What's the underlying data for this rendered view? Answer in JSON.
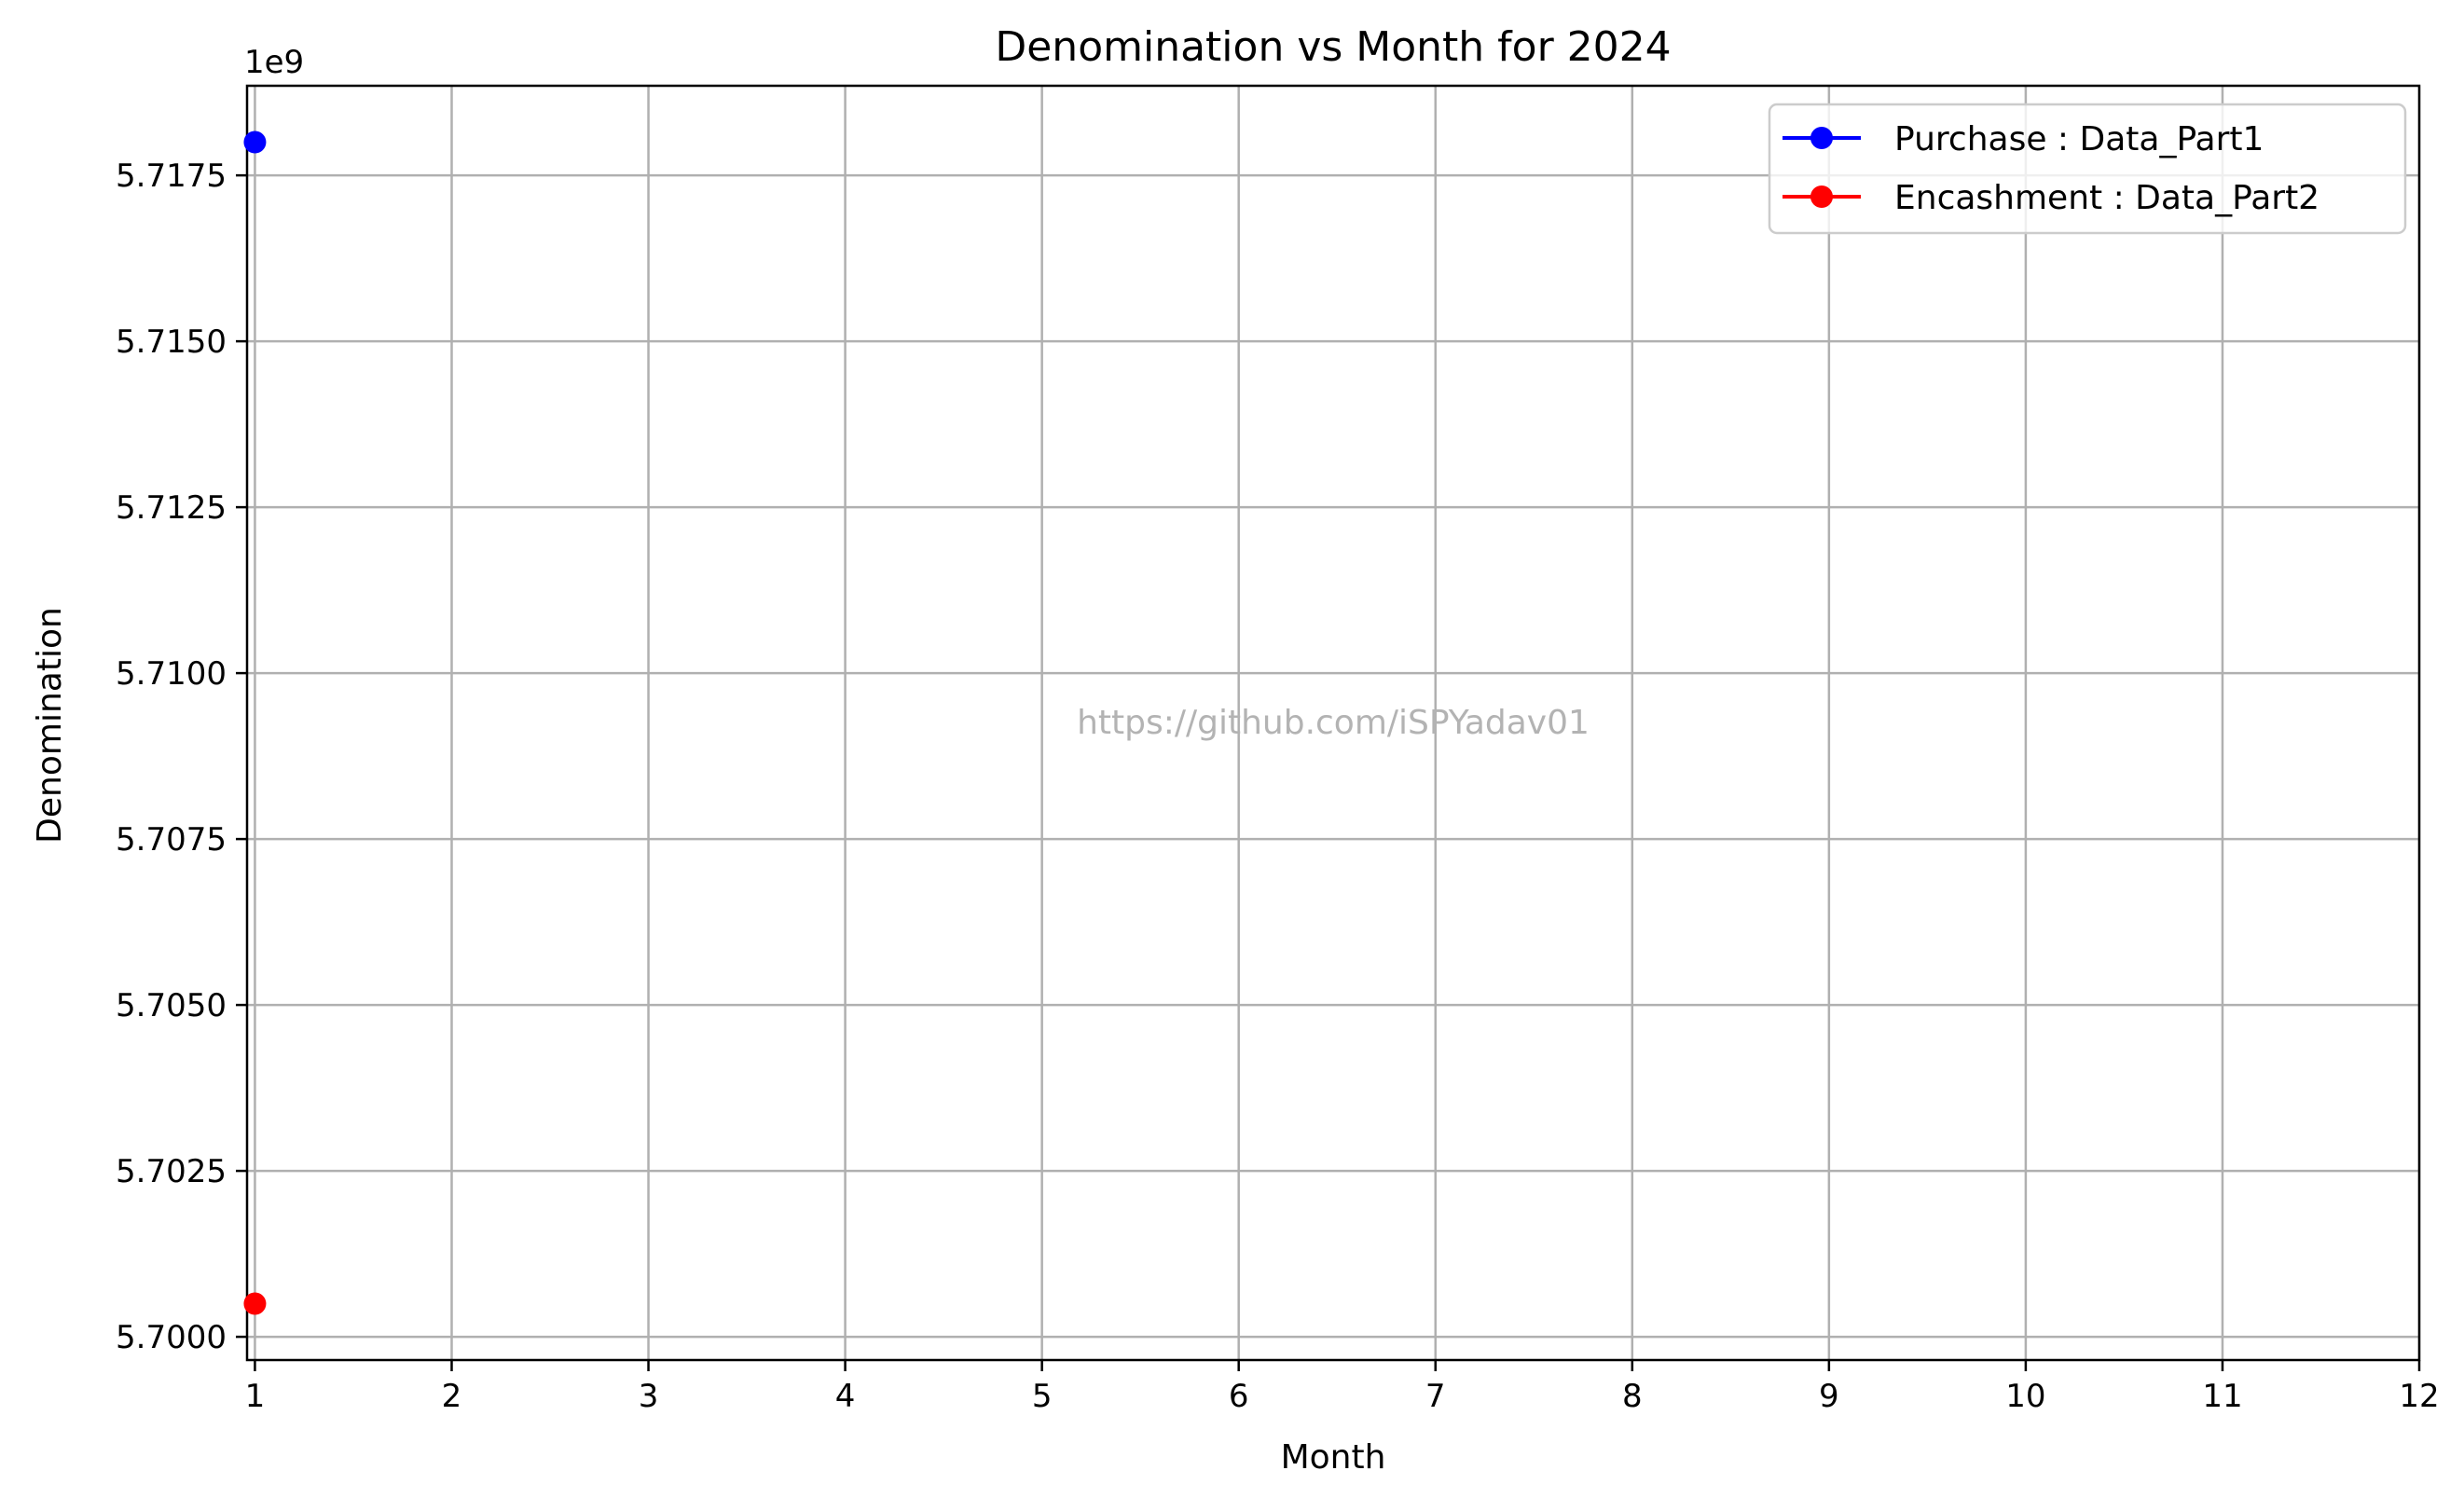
{
  "watermark": "https://github.com/iSPYadav01",
  "chart_data": {
    "type": "line",
    "title": "Denomination vs Month for 2024",
    "xlabel": "Month",
    "ylabel": "Denomination",
    "y_offset_label": "1e9",
    "xlim": [
      0.96,
      12
    ],
    "ylim": [
      5.69965,
      5.71885
    ],
    "x_ticks": [
      1,
      2,
      3,
      4,
      5,
      6,
      7,
      8,
      9,
      10,
      11,
      12
    ],
    "x_tick_labels": [
      "1",
      "2",
      "3",
      "4",
      "5",
      "6",
      "7",
      "8",
      "9",
      "10",
      "11",
      "12"
    ],
    "y_ticks": [
      5.7,
      5.7025,
      5.705,
      5.7075,
      5.71,
      5.7125,
      5.715,
      5.7175
    ],
    "y_tick_labels": [
      "5.7000",
      "5.7025",
      "5.7050",
      "5.7075",
      "5.7100",
      "5.7125",
      "5.7150",
      "5.7175"
    ],
    "grid": true,
    "legend_position": "top-right",
    "series": [
      {
        "name": "Purchase : Data_Part1",
        "color": "#0000ff",
        "marker": "circle",
        "x": [
          1
        ],
        "y": [
          5.718
        ]
      },
      {
        "name": "Encashment : Data_Part2",
        "color": "#ff0000",
        "marker": "circle",
        "x": [
          1
        ],
        "y": [
          5.7005
        ]
      }
    ]
  }
}
